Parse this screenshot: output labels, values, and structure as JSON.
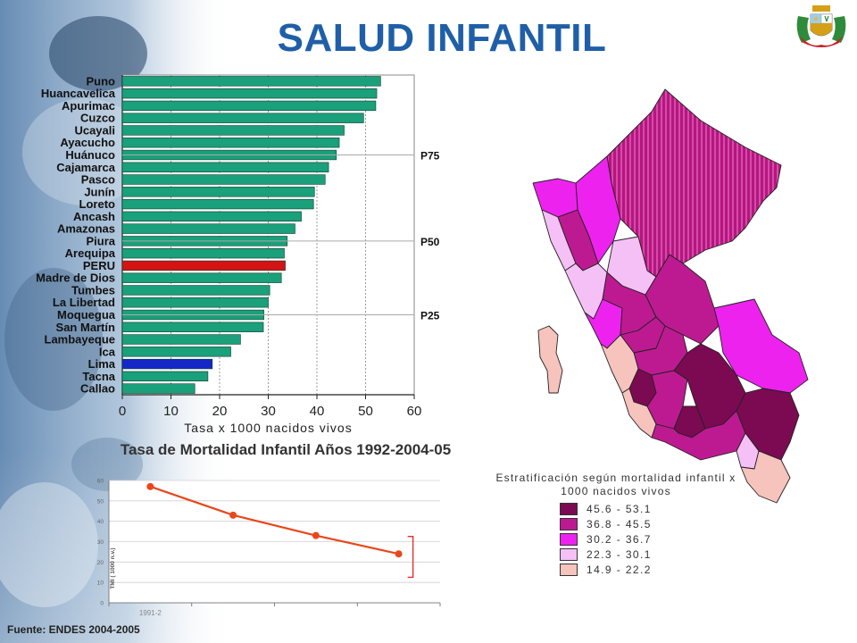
{
  "title": "SALUD INFANTIL",
  "source": "Fuente:  ENDES 2004-2005",
  "colors": {
    "title": "#1f5fa8",
    "bar": "#1aa07a",
    "peru": "#d41414",
    "lima": "#1428c8",
    "line": "#e8471c"
  },
  "chart_data": [
    {
      "type": "bar",
      "orientation": "horizontal",
      "categories": [
        "Puno",
        "Huancavelica",
        "Apurimac",
        "Cuzco",
        "Ucayali",
        "Ayacucho",
        "Huánuco",
        "Cajamarca",
        "Pasco",
        "Junín",
        "Loreto",
        "Ancash",
        "Amazonas",
        "Piura",
        "Arequipa",
        "PERU",
        "Madre de Dios",
        "Tumbes",
        "La Libertad",
        "Moquegua",
        "San Martín",
        "Lambayeque",
        "Ica",
        "Lima",
        "Tacna",
        "Callao"
      ],
      "values": [
        53.1,
        52.3,
        52.1,
        49.6,
        45.6,
        44.6,
        44.0,
        42.4,
        41.7,
        39.5,
        39.3,
        36.8,
        35.5,
        33.9,
        33.3,
        33.5,
        32.7,
        30.3,
        30.0,
        29.1,
        29.0,
        24.3,
        22.3,
        18.5,
        17.6,
        14.9
      ],
      "xlabel": "Tasa x 1000 nacidos vivos",
      "xticks": [
        0,
        10,
        20,
        30,
        40,
        50,
        60
      ],
      "xlim": [
        0,
        60
      ],
      "reference_lines": [
        {
          "label": "P75",
          "category": "Huánuco"
        },
        {
          "label": "P50",
          "category": "Piura"
        },
        {
          "label": "P25",
          "category": "Moquegua"
        }
      ],
      "highlight": {
        "PERU": "#d41414",
        "Lima": "#1428c8"
      }
    },
    {
      "type": "line",
      "title": "Tasa de Mortalidad Infantil Años 1992-2004-05",
      "categories": [
        "1991-2",
        "",
        "",
        ""
      ],
      "values": [
        57,
        43,
        33,
        24
      ],
      "ylabel": "TMI ( 1000 n.v.)",
      "yticks": [
        0,
        10,
        20,
        30,
        40,
        50,
        60
      ],
      "ylim": [
        0,
        60
      ]
    },
    {
      "type": "choropleth",
      "legend_title": "Estratificación según mortalidad infantil x 1000 nacidos vivos",
      "legend": [
        {
          "label": "45.6 - 53.1",
          "color": "#7b0a52"
        },
        {
          "label": "36.8 - 45.5",
          "color": "#bd1a92"
        },
        {
          "label": "30.2 - 36.7",
          "color": "#ee22ee"
        },
        {
          "label": "22.3 - 30.1",
          "color": "#f5c0f5"
        },
        {
          "label": "14.9 - 22.2",
          "color": "#f6c3bd"
        }
      ]
    }
  ]
}
